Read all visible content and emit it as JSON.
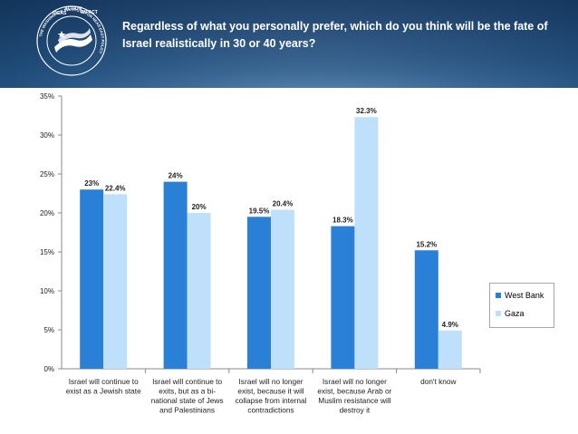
{
  "title": "Regardless of what you personally prefer, which do you think will be the fate of Israel realistically in 30 or 40 years?",
  "logo": {
    "icon": "institute-seal-icon",
    "text_top": "ACTION",
    "text_left": "IDEAS",
    "text_right": "IMPACT",
    "text_ring": "THE WASHINGTON INSTITUTE FOR NEAR EAST POLICY"
  },
  "colors": {
    "west_bank": "#2a7fd6",
    "gaza": "#bfe0fa"
  },
  "chart_data": {
    "type": "bar",
    "categories": [
      [
        "Israel will continue to",
        "exist as a Jewish state"
      ],
      [
        "Israel will continue to",
        "exits, but as a bi-",
        "national state of Jews",
        "and Palestinians"
      ],
      [
        "Israel will no longer",
        "exist, because it will",
        "collapse from internal",
        "contradictions"
      ],
      [
        "Israel will no longer",
        "exist, because Arab or",
        "Muslim resistance will",
        "destroy it"
      ],
      [
        "don't know"
      ]
    ],
    "series": [
      {
        "name": "West Bank",
        "values": [
          23,
          24,
          19.5,
          18.3,
          15.2
        ],
        "labels": [
          "23%",
          "24%",
          "19.5%",
          "18.3%",
          "15.2%"
        ]
      },
      {
        "name": "Gaza",
        "values": [
          22.4,
          20,
          20.4,
          32.3,
          4.9
        ],
        "labels": [
          "22.4%",
          "20%",
          "20.4%",
          "32.3%",
          "4.9%"
        ]
      }
    ],
    "ylim": [
      0,
      35
    ],
    "yticks": [
      0,
      5,
      10,
      15,
      20,
      25,
      30,
      35
    ],
    "ytick_labels": [
      "0%",
      "5%",
      "10%",
      "15%",
      "20%",
      "25%",
      "30%",
      "35%"
    ],
    "grid": "x-category-separators",
    "legend": "right"
  }
}
